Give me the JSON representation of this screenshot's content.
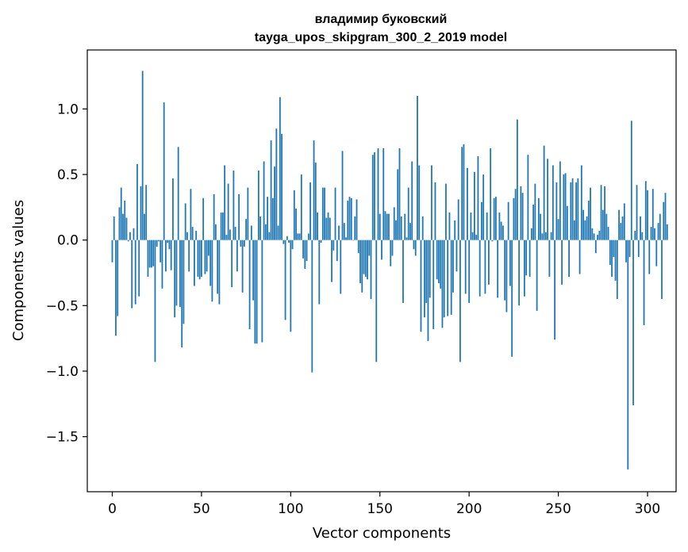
{
  "chart_data": {
    "type": "bar",
    "title": "владимир буковский",
    "subtitle": "tayga_upos_skipgram_300_2_2019 model",
    "xlabel": "Vector components",
    "ylabel": "Components values",
    "xlim": [
      -14,
      316
    ],
    "ylim": [
      -1.92,
      1.45
    ],
    "xticks": [
      0,
      50,
      100,
      150,
      200,
      250,
      300
    ],
    "yticks": [
      -1.5,
      -1.0,
      -0.5,
      0.0,
      0.5,
      1.0
    ],
    "ytick_labels": [
      "−1.5",
      "−1.0",
      "−0.5",
      "0.0",
      "0.5",
      "1.0"
    ],
    "bar_color": "#1f77b4",
    "grid": false,
    "legend": "none",
    "x_start": 0,
    "values": [
      -0.17,
      0.18,
      -0.73,
      -0.58,
      0.25,
      0.4,
      0.2,
      0.3,
      0.17,
      -0.01,
      0.06,
      -0.52,
      0.09,
      -0.49,
      0.58,
      -0.43,
      0.41,
      1.29,
      0.2,
      0.42,
      -0.28,
      -0.21,
      -0.21,
      -0.2,
      -0.93,
      -0.05,
      -0.01,
      -0.17,
      -0.37,
      1.05,
      -0.24,
      -0.02,
      -0.07,
      -0.23,
      0.47,
      -0.59,
      -0.5,
      0.71,
      -0.51,
      -0.82,
      -0.64,
      0.28,
      0.06,
      -0.24,
      0.39,
      0.1,
      -0.35,
      0.07,
      -0.28,
      -0.3,
      -0.28,
      0.32,
      -0.26,
      -0.24,
      -0.12,
      -0.35,
      -0.47,
      0.35,
      0.12,
      -0.41,
      -0.49,
      0.21,
      0.21,
      0.57,
      0.04,
      0.43,
      0.08,
      -0.36,
      0.53,
      0.1,
      -0.24,
      0.35,
      -0.05,
      -0.4,
      -0.05,
      0.16,
      0.4,
      -0.68,
      0.11,
      -0.46,
      -0.79,
      -0.79,
      0.53,
      0.18,
      -0.78,
      0.6,
      0.12,
      0.33,
      0.06,
      0.76,
      0.32,
      0.56,
      0.85,
      0.11,
      1.09,
      0.81,
      -0.03,
      -0.61,
      0.03,
      -0.02,
      -0.7,
      -0.07,
      0.38,
      0.24,
      0.05,
      0.05,
      0.5,
      -0.14,
      -0.22,
      -0.16,
      0.05,
      0.44,
      -1.01,
      0.76,
      0.59,
      0.21,
      -0.49,
      -0.02,
      0.4,
      0.4,
      0.17,
      0.21,
      0.17,
      -0.32,
      -0.08,
      0.4,
      -0.16,
      0.11,
      -0.41,
      0.68,
      0.13,
      0.02,
      0.3,
      0.33,
      0.32,
      0.0,
      0.18,
      0.31,
      -0.1,
      -0.33,
      -0.4,
      -0.26,
      -0.28,
      -0.3,
      -0.12,
      -0.45,
      0.65,
      0.67,
      -0.93,
      0.7,
      0.2,
      -0.15,
      0.7,
      0.22,
      0.2,
      0.2,
      -0.2,
      -0.12,
      0.25,
      0.15,
      0.54,
      0.7,
      0.18,
      -0.48,
      0.2,
      0.02,
      0.4,
      0.13,
      0.6,
      -0.07,
      -0.12,
      1.1,
      0.57,
      -0.7,
      0.18,
      -0.59,
      -0.48,
      -0.77,
      -0.44,
      0.57,
      -0.68,
      0.44,
      -0.3,
      -0.33,
      -0.37,
      -0.67,
      -0.59,
      0.43,
      -0.58,
      0.21,
      -0.57,
      -0.4,
      0.15,
      -0.24,
      0.31,
      -0.93,
      0.71,
      0.73,
      -0.41,
      0.55,
      -0.48,
      0.21,
      0.06,
      0.52,
      0.04,
      0.64,
      -0.43,
      0.29,
      0.5,
      -0.41,
      0.21,
      -0.34,
      0.7,
      -0.01,
      0.32,
      0.33,
      -0.44,
      0.21,
      0.14,
      0.11,
      -0.46,
      -0.55,
      0.29,
      -0.35,
      -0.89,
      0.32,
      0.39,
      0.92,
      -0.5,
      0.41,
      0.36,
      -0.43,
      -0.27,
      0.65,
      -0.28,
      0.09,
      0.27,
      0.43,
      -0.54,
      0.32,
      0.2,
      0.05,
      0.72,
      0.06,
      0.62,
      -0.28,
      0.06,
      0.57,
      -0.76,
      0.44,
      0.16,
      0.6,
      -0.34,
      0.5,
      0.51,
      0.26,
      -0.28,
      0.44,
      0.47,
      0.15,
      0.44,
      0.47,
      -0.26,
      0.57,
      0.23,
      0.15,
      0.18,
      0.3,
      0.4,
      0.09,
      0.05,
      -0.1,
      0.04,
      0.07,
      0.42,
      0.23,
      0.41,
      0.2,
      0.1,
      -0.19,
      -0.28,
      -0.13,
      -0.31,
      -0.45,
      0.23,
      0.13,
      0.18,
      0.28,
      -0.17,
      -1.75,
      -0.13,
      0.91,
      -1.26,
      0.07,
      0.42,
      -0.13,
      0.18,
      0.06,
      -0.65,
      0.45,
      0.38,
      -0.26,
      0.1,
      0.39,
      0.09,
      -0.2,
      0.13,
      0.2,
      -0.45,
      0.29,
      0.36,
      0.12
    ]
  }
}
